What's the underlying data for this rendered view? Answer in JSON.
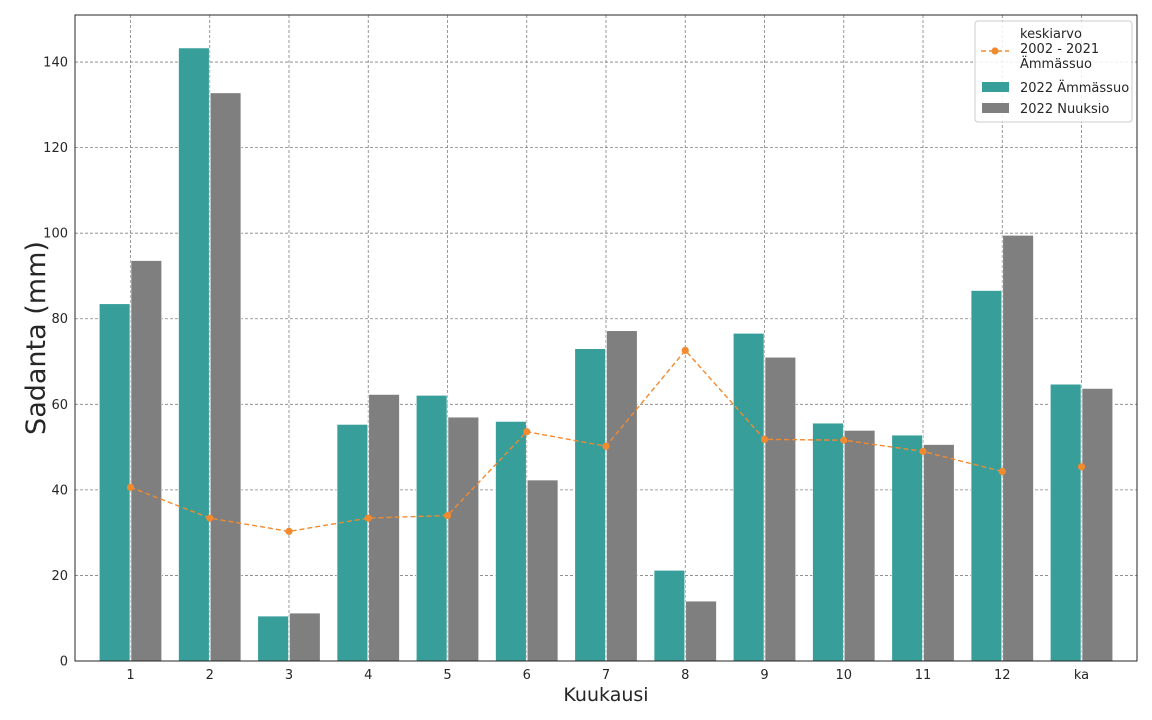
{
  "chart_data": {
    "type": "bar",
    "xlabel": "Kuukausi",
    "ylabel": "Sadanta (mm)",
    "ylim": [
      0,
      151
    ],
    "yticks": [
      0,
      20,
      40,
      60,
      80,
      100,
      120,
      140
    ],
    "categories": [
      "1",
      "2",
      "3",
      "4",
      "5",
      "6",
      "7",
      "8",
      "9",
      "10",
      "11",
      "12",
      "ka"
    ],
    "series": [
      {
        "name": "2022 Ämmässuo",
        "type": "bar",
        "color": "#379e99",
        "values": [
          83.5,
          143.3,
          10.5,
          55.3,
          62.1,
          56.0,
          73.0,
          21.2,
          76.6,
          55.6,
          52.8,
          86.6,
          64.7
        ]
      },
      {
        "name": "2022 Nuuksio",
        "type": "bar",
        "color": "#7f7f7f",
        "values": [
          93.6,
          132.8,
          11.2,
          62.3,
          57.0,
          42.3,
          77.2,
          14.0,
          71.0,
          53.9,
          50.6,
          99.5,
          63.7
        ]
      },
      {
        "name": "keskiarvo\n2002 - 2021\nÄmmässuo",
        "type": "line",
        "color": "#f28a30",
        "style": "dashed",
        "marker": "circle",
        "values": [
          40.6,
          33.4,
          30.3,
          33.4,
          34.0,
          53.6,
          50.2,
          72.6,
          51.8,
          51.6,
          49.0,
          44.3,
          45.4
        ]
      }
    ],
    "grid": true,
    "legend_position": "top-right"
  }
}
